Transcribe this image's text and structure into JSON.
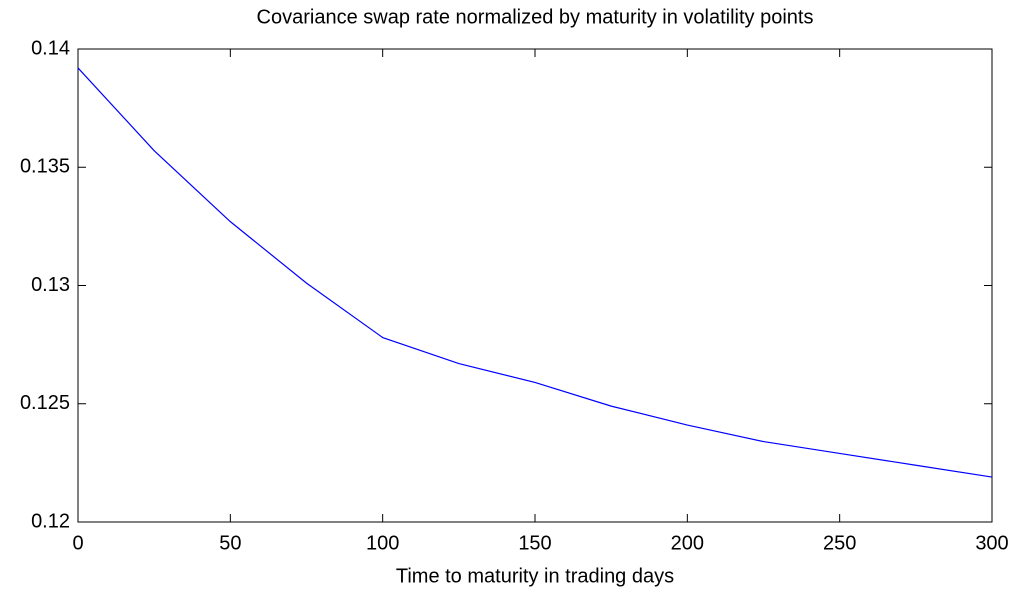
{
  "chart_data": {
    "type": "line",
    "title": "Covariance swap rate normalized by maturity in volatility points",
    "x_label": "Time to maturity in trading days",
    "x": [
      0,
      25,
      50,
      75,
      100,
      125,
      150,
      175,
      200,
      225,
      250,
      275,
      300
    ],
    "series": [
      {
        "color": "#0000ff",
        "values": [
          0.1392,
          0.1357,
          0.1327,
          0.1301,
          0.1278,
          0.1267,
          0.1259,
          0.1249,
          0.1241,
          0.1234,
          0.1229,
          0.1224,
          0.1219
        ]
      }
    ],
    "xlim": [
      0,
      300
    ],
    "xticks": [
      0,
      50,
      100,
      150,
      200,
      250,
      300
    ],
    "ylim": [
      0.12,
      0.14
    ],
    "yticks": [
      0.12,
      0.125,
      0.13,
      0.135,
      0.14
    ],
    "grid": false
  }
}
